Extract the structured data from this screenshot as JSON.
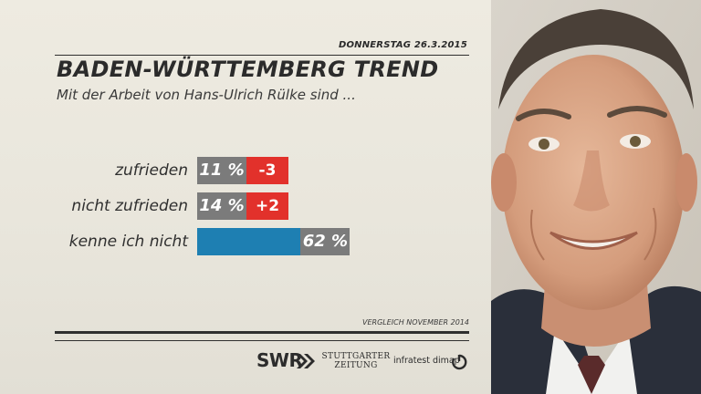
{
  "header": {
    "date": "DONNERSTAG  26.3.2015",
    "title": "BADEN-WÜRTTEMBERG TREND",
    "subtitle": "Mit der Arbeit von Hans-Ulrich Rülke sind ..."
  },
  "chart_data": {
    "type": "bar",
    "orientation": "horizontal",
    "title": "BADEN-WÜRTTEMBERG TREND",
    "subtitle": "Mit der Arbeit von Hans-Ulrich Rülke sind ...",
    "categories": [
      "zufrieden",
      "nicht zufrieden",
      "kenne ich nicht"
    ],
    "values": [
      11,
      14,
      62
    ],
    "value_labels": [
      "11 %",
      "14 %",
      "62 %"
    ],
    "changes": [
      -3,
      2,
      null
    ],
    "change_labels": [
      "-3",
      "+2",
      ""
    ],
    "unit": "%",
    "xlim": [
      0,
      100
    ],
    "grid": false,
    "comparison_note": "VERGLEICH NOVEMBER 2014"
  },
  "colors": {
    "bar": "#1e7fb2",
    "value_box": "#7b7b7b",
    "change_box": "#e2312b",
    "text": "#2b2b2b"
  },
  "footer": {
    "comparison": "VERGLEICH NOVEMBER 2014",
    "logo_swr": "SWR",
    "logo_sz_line1": "STUTTGARTER",
    "logo_sz_line2": "ZEITUNG",
    "logo_infratest": "infratest dimap"
  }
}
